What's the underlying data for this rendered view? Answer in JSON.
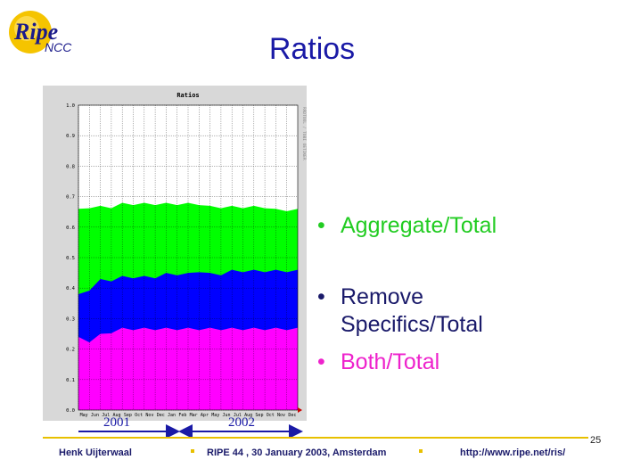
{
  "logo": {
    "ripe": "Ripe",
    "ncc": "NCC"
  },
  "slide": {
    "title": "Ratios",
    "page_number": "25"
  },
  "bullets": [
    {
      "text": "Aggregate/Total",
      "color": "#22cc22"
    },
    {
      "text": "Remove",
      "color": "#1a1a6a"
    },
    {
      "text": "Specifics/Total",
      "color": "#1a1a6a"
    },
    {
      "text": "Both/Total",
      "color": "#ee22cc"
    }
  ],
  "years": {
    "y2001": "2001",
    "y2002": "2002"
  },
  "footer": {
    "author": "Henk Uijterwaal",
    "event": "RIPE 44 ,  30 January 2003, Amsterdam",
    "url": "http://www.ripe.net/ris/"
  },
  "chart_data": {
    "type": "area",
    "title": "Ratios",
    "side_text": "RRDTOOL / TOBI OETIKER",
    "xlabels": [
      "May",
      "Jun",
      "Jul",
      "Aug",
      "Sep",
      "Oct",
      "Nov",
      "Dec",
      "Jan",
      "Feb",
      "Mar",
      "Apr",
      "May",
      "Jun",
      "Jul",
      "Aug",
      "Sep",
      "Oct",
      "Nov",
      "Dec"
    ],
    "ylim": [
      0,
      1.0
    ],
    "yticks": [
      "0.0",
      "0.1",
      "0.2",
      "0.3",
      "0.4",
      "0.5",
      "0.6",
      "0.7",
      "0.8",
      "0.9",
      "1.0"
    ],
    "grid": true,
    "series": [
      {
        "color": "#00ff00",
        "values": [
          0.66,
          0.67,
          0.67,
          0.67,
          0.68,
          0.68,
          0.68,
          0.68,
          0.68,
          0.68,
          0.68,
          0.68,
          0.67,
          0.67,
          0.67,
          0.67,
          0.67,
          0.67,
          0.66,
          0.66,
          0.66
        ]
      },
      {
        "color": "#0000ff",
        "values": [
          0.38,
          0.4,
          0.43,
          0.43,
          0.44,
          0.44,
          0.44,
          0.44,
          0.45,
          0.45,
          0.45,
          0.46,
          0.45,
          0.45,
          0.46,
          0.46,
          0.46,
          0.46,
          0.46,
          0.46,
          0.46
        ]
      },
      {
        "color": "#ff00ff",
        "values": [
          0.24,
          0.23,
          0.25,
          0.26,
          0.27,
          0.27,
          0.27,
          0.27,
          0.27,
          0.27,
          0.27,
          0.27,
          0.27,
          0.27,
          0.27,
          0.27,
          0.27,
          0.27,
          0.27,
          0.27,
          0.27
        ]
      }
    ]
  }
}
